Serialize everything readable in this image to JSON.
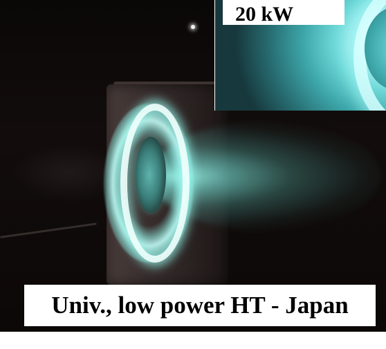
{
  "caption": "Univ., low power HT - Japan",
  "inset": {
    "label": "20 kW"
  }
}
